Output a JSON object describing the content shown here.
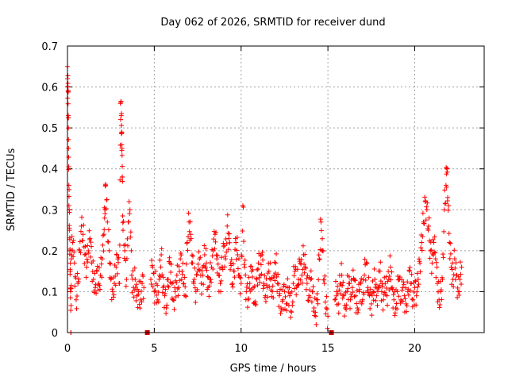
{
  "chart_data": {
    "type": "scatter",
    "title": "Day 062 of 2026, SRMTID for receiver dund",
    "xlabel": "GPS time / hours",
    "ylabel": "SRMTID / TECUs",
    "xlim": [
      0,
      24
    ],
    "ylim": [
      0,
      0.7
    ],
    "x_ticks": [
      0,
      5,
      10,
      15,
      20
    ],
    "y_ticks": [
      0,
      0.1,
      0.2,
      0.3,
      0.4,
      0.5,
      0.6,
      0.7
    ],
    "x_tick_labels": [
      "0",
      "5",
      "10",
      "15",
      "20"
    ],
    "y_tick_labels": [
      "0",
      "0.1",
      "0.2",
      "0.3",
      "0.4",
      "0.5",
      "0.6",
      "0.7"
    ],
    "grid": true,
    "marker": "+",
    "color": "#ff0000",
    "data_gaps": [
      4.6,
      15.2
    ],
    "series": [
      {
        "name": "SRMTID",
        "points": [
          [
            0.0,
            0.62
          ],
          [
            0.02,
            0.6
          ],
          [
            0.04,
            0.59
          ],
          [
            0.05,
            0.53
          ],
          [
            0.06,
            0.45
          ],
          [
            0.08,
            0.36
          ],
          [
            0.1,
            0.3
          ],
          [
            0.12,
            0.25
          ],
          [
            0.14,
            0.2
          ],
          [
            0.16,
            0.15
          ],
          [
            0.18,
            0.1
          ],
          [
            0.2,
            0.0
          ],
          [
            0.22,
            0.18
          ],
          [
            0.3,
            0.22
          ],
          [
            0.4,
            0.17
          ],
          [
            0.5,
            0.08
          ],
          [
            0.6,
            0.12
          ],
          [
            0.7,
            0.2
          ],
          [
            0.8,
            0.26
          ],
          [
            0.9,
            0.24
          ],
          [
            1.0,
            0.19
          ],
          [
            1.1,
            0.16
          ],
          [
            1.2,
            0.2
          ],
          [
            1.3,
            0.23
          ],
          [
            1.4,
            0.17
          ],
          [
            1.5,
            0.13
          ],
          [
            1.6,
            0.11
          ],
          [
            1.7,
            0.15
          ],
          [
            1.8,
            0.12
          ],
          [
            1.9,
            0.14
          ],
          [
            2.0,
            0.18
          ],
          [
            2.1,
            0.24
          ],
          [
            2.15,
            0.3
          ],
          [
            2.2,
            0.36
          ],
          [
            2.3,
            0.27
          ],
          [
            2.4,
            0.2
          ],
          [
            2.5,
            0.13
          ],
          [
            2.6,
            0.1
          ],
          [
            2.7,
            0.12
          ],
          [
            2.8,
            0.16
          ],
          [
            2.9,
            0.18
          ],
          [
            3.0,
            0.12
          ],
          [
            3.05,
            0.56
          ],
          [
            3.1,
            0.53
          ],
          [
            3.12,
            0.49
          ],
          [
            3.14,
            0.45
          ],
          [
            3.16,
            0.38
          ],
          [
            3.2,
            0.25
          ],
          [
            3.3,
            0.2
          ],
          [
            3.4,
            0.13
          ],
          [
            3.5,
            0.27
          ],
          [
            3.6,
            0.3
          ],
          [
            3.7,
            0.14
          ],
          [
            3.8,
            0.11
          ],
          [
            3.9,
            0.13
          ],
          [
            4.0,
            0.09
          ],
          [
            4.1,
            0.1
          ],
          [
            4.2,
            0.08
          ],
          [
            4.3,
            0.12
          ],
          [
            4.4,
            0.11
          ],
          [
            4.8,
            0.13
          ],
          [
            4.9,
            0.16
          ],
          [
            5.0,
            0.1
          ],
          [
            5.1,
            0.12
          ],
          [
            5.2,
            0.08
          ],
          [
            5.3,
            0.14
          ],
          [
            5.4,
            0.19
          ],
          [
            5.5,
            0.11
          ],
          [
            5.6,
            0.09
          ],
          [
            5.7,
            0.06
          ],
          [
            5.8,
            0.13
          ],
          [
            5.9,
            0.17
          ],
          [
            6.0,
            0.12
          ],
          [
            6.1,
            0.08
          ],
          [
            6.2,
            0.1
          ],
          [
            6.3,
            0.14
          ],
          [
            6.4,
            0.11
          ],
          [
            6.5,
            0.18
          ],
          [
            6.6,
            0.15
          ],
          [
            6.7,
            0.12
          ],
          [
            6.8,
            0.09
          ],
          [
            6.9,
            0.22
          ],
          [
            7.0,
            0.27
          ],
          [
            7.1,
            0.24
          ],
          [
            7.2,
            0.17
          ],
          [
            7.3,
            0.13
          ],
          [
            7.4,
            0.1
          ],
          [
            7.5,
            0.15
          ],
          [
            7.6,
            0.18
          ],
          [
            7.7,
            0.12
          ],
          [
            7.8,
            0.14
          ],
          [
            7.9,
            0.19
          ],
          [
            8.0,
            0.17
          ],
          [
            8.1,
            0.11
          ],
          [
            8.2,
            0.13
          ],
          [
            8.3,
            0.16
          ],
          [
            8.4,
            0.2
          ],
          [
            8.5,
            0.24
          ],
          [
            8.6,
            0.18
          ],
          [
            8.7,
            0.14
          ],
          [
            8.8,
            0.12
          ],
          [
            8.9,
            0.16
          ],
          [
            9.0,
            0.21
          ],
          [
            9.1,
            0.18
          ],
          [
            9.2,
            0.26
          ],
          [
            9.3,
            0.23
          ],
          [
            9.4,
            0.17
          ],
          [
            9.5,
            0.12
          ],
          [
            9.6,
            0.15
          ],
          [
            9.7,
            0.22
          ],
          [
            9.8,
            0.19
          ],
          [
            9.9,
            0.14
          ],
          [
            10.0,
            0.12
          ],
          [
            10.1,
            0.31
          ],
          [
            10.2,
            0.16
          ],
          [
            10.3,
            0.1
          ],
          [
            10.4,
            0.08
          ],
          [
            10.5,
            0.12
          ],
          [
            10.6,
            0.15
          ],
          [
            10.7,
            0.11
          ],
          [
            10.8,
            0.07
          ],
          [
            10.9,
            0.13
          ],
          [
            11.0,
            0.17
          ],
          [
            11.1,
            0.14
          ],
          [
            11.2,
            0.19
          ],
          [
            11.3,
            0.12
          ],
          [
            11.4,
            0.09
          ],
          [
            11.5,
            0.11
          ],
          [
            11.6,
            0.15
          ],
          [
            11.7,
            0.13
          ],
          [
            11.8,
            0.1
          ],
          [
            11.9,
            0.14
          ],
          [
            12.0,
            0.17
          ],
          [
            12.1,
            0.12
          ],
          [
            12.2,
            0.09
          ],
          [
            12.3,
            0.06
          ],
          [
            12.4,
            0.08
          ],
          [
            12.5,
            0.1
          ],
          [
            12.6,
            0.07
          ],
          [
            12.7,
            0.11
          ],
          [
            12.8,
            0.09
          ],
          [
            12.9,
            0.05
          ],
          [
            13.0,
            0.12
          ],
          [
            13.1,
            0.15
          ],
          [
            13.2,
            0.11
          ],
          [
            13.3,
            0.13
          ],
          [
            13.4,
            0.17
          ],
          [
            13.5,
            0.14
          ],
          [
            13.6,
            0.19
          ],
          [
            13.7,
            0.16
          ],
          [
            13.8,
            0.12
          ],
          [
            13.9,
            0.09
          ],
          [
            14.0,
            0.13
          ],
          [
            14.1,
            0.1
          ],
          [
            14.2,
            0.06
          ],
          [
            14.3,
            0.04
          ],
          [
            14.4,
            0.08
          ],
          [
            14.5,
            0.18
          ],
          [
            14.6,
            0.27
          ],
          [
            14.7,
            0.2
          ],
          [
            14.8,
            0.12
          ],
          [
            14.9,
            0.06
          ],
          [
            15.0,
            0.04
          ],
          [
            15.4,
            0.08
          ],
          [
            15.5,
            0.1
          ],
          [
            15.6,
            0.07
          ],
          [
            15.7,
            0.12
          ],
          [
            15.8,
            0.14
          ],
          [
            15.9,
            0.09
          ],
          [
            16.0,
            0.06
          ],
          [
            16.1,
            0.1
          ],
          [
            16.2,
            0.12
          ],
          [
            16.3,
            0.08
          ],
          [
            16.4,
            0.11
          ],
          [
            16.5,
            0.13
          ],
          [
            16.6,
            0.09
          ],
          [
            16.7,
            0.06
          ],
          [
            16.8,
            0.1
          ],
          [
            16.9,
            0.12
          ],
          [
            17.0,
            0.08
          ],
          [
            17.1,
            0.14
          ],
          [
            17.2,
            0.17
          ],
          [
            17.3,
            0.11
          ],
          [
            17.4,
            0.09
          ],
          [
            17.5,
            0.07
          ],
          [
            17.6,
            0.1
          ],
          [
            17.7,
            0.13
          ],
          [
            17.8,
            0.09
          ],
          [
            17.9,
            0.11
          ],
          [
            18.0,
            0.15
          ],
          [
            18.1,
            0.1
          ],
          [
            18.2,
            0.08
          ],
          [
            18.3,
            0.12
          ],
          [
            18.4,
            0.09
          ],
          [
            18.5,
            0.13
          ],
          [
            18.6,
            0.16
          ],
          [
            18.7,
            0.11
          ],
          [
            18.8,
            0.08
          ],
          [
            18.9,
            0.06
          ],
          [
            19.0,
            0.1
          ],
          [
            19.1,
            0.13
          ],
          [
            19.2,
            0.08
          ],
          [
            19.3,
            0.11
          ],
          [
            19.4,
            0.09
          ],
          [
            19.5,
            0.07
          ],
          [
            19.6,
            0.1
          ],
          [
            19.7,
            0.15
          ],
          [
            19.8,
            0.12
          ],
          [
            19.9,
            0.08
          ],
          [
            20.0,
            0.11
          ],
          [
            20.1,
            0.09
          ],
          [
            20.2,
            0.13
          ],
          [
            20.3,
            0.17
          ],
          [
            20.4,
            0.22
          ],
          [
            20.5,
            0.27
          ],
          [
            20.6,
            0.32
          ],
          [
            20.7,
            0.3
          ],
          [
            20.8,
            0.26
          ],
          [
            20.9,
            0.2
          ],
          [
            21.0,
            0.17
          ],
          [
            21.1,
            0.22
          ],
          [
            21.2,
            0.18
          ],
          [
            21.3,
            0.12
          ],
          [
            21.4,
            0.08
          ],
          [
            21.5,
            0.1
          ],
          [
            21.6,
            0.13
          ],
          [
            21.7,
            0.3
          ],
          [
            21.8,
            0.36
          ],
          [
            21.85,
            0.4
          ],
          [
            21.9,
            0.33
          ],
          [
            22.0,
            0.22
          ],
          [
            22.1,
            0.16
          ],
          [
            22.2,
            0.13
          ],
          [
            22.3,
            0.18
          ],
          [
            22.4,
            0.14
          ],
          [
            22.5,
            0.1
          ],
          [
            22.6,
            0.13
          ],
          [
            22.7,
            0.16
          ]
        ]
      }
    ]
  }
}
